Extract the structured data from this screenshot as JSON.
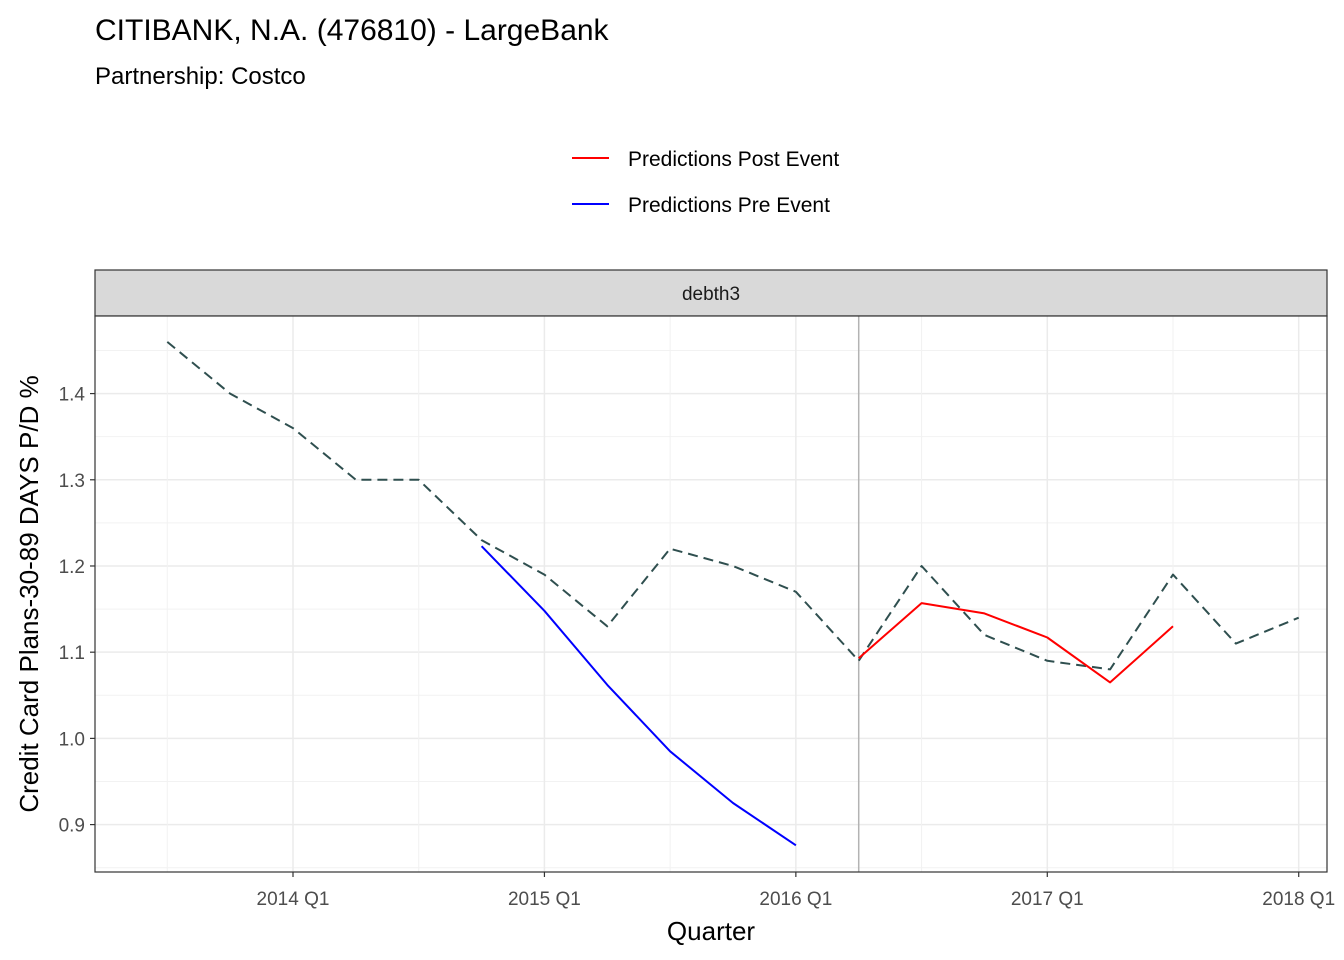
{
  "chart_data": {
    "type": "line",
    "title": "CITIBANK, N.A. (476810) - LargeBank",
    "subtitle": "Partnership: Costco",
    "facet_label": "debth3",
    "xlabel": "Quarter",
    "ylabel": "Credit Card Plans-30-89 DAYS P/D %",
    "x_tick_labels": [
      "2014 Q1",
      "2015 Q1",
      "2016 Q1",
      "2017 Q1",
      "2018 Q1"
    ],
    "y_tick_labels": [
      "0.9",
      "1.0",
      "1.1",
      "1.2",
      "1.3",
      "1.4"
    ],
    "ylim": [
      0.845,
      1.49
    ],
    "xlim": [
      "2013 Q2",
      "2018 Q1"
    ],
    "event_line": "2016 Q2",
    "grid": true,
    "legend_position": "top",
    "series": [
      {
        "name": "",
        "style": "dashed",
        "color": "#2F4F4F",
        "x": [
          "2013 Q3",
          "2013 Q4",
          "2014 Q1",
          "2014 Q2",
          "2014 Q3",
          "2014 Q4",
          "2015 Q1",
          "2015 Q2",
          "2015 Q3",
          "2015 Q4",
          "2016 Q1",
          "2016 Q2",
          "2016 Q3",
          "2016 Q4",
          "2017 Q1",
          "2017 Q2",
          "2017 Q3",
          "2017 Q4",
          "2018 Q1"
        ],
        "values": [
          1.46,
          1.4,
          1.36,
          1.3,
          1.3,
          1.23,
          1.19,
          1.13,
          1.22,
          1.2,
          1.17,
          1.09,
          1.2,
          1.12,
          1.09,
          1.08,
          1.19,
          1.11,
          1.14
        ]
      },
      {
        "name": "Predictions Post Event",
        "style": "solid",
        "color": "#FF0000",
        "x": [
          "2016 Q2",
          "2016 Q3",
          "2016 Q4",
          "2017 Q1",
          "2017 Q2",
          "2017 Q3"
        ],
        "values": [
          1.093,
          1.157,
          1.145,
          1.117,
          1.065,
          1.13
        ]
      },
      {
        "name": "Predictions Pre Event",
        "style": "solid",
        "color": "#0000FF",
        "x": [
          "2014 Q4",
          "2015 Q1",
          "2015 Q2",
          "2015 Q3",
          "2015 Q4",
          "2016 Q1"
        ],
        "values": [
          1.223,
          1.148,
          1.062,
          0.985,
          0.925,
          0.876
        ]
      }
    ]
  }
}
